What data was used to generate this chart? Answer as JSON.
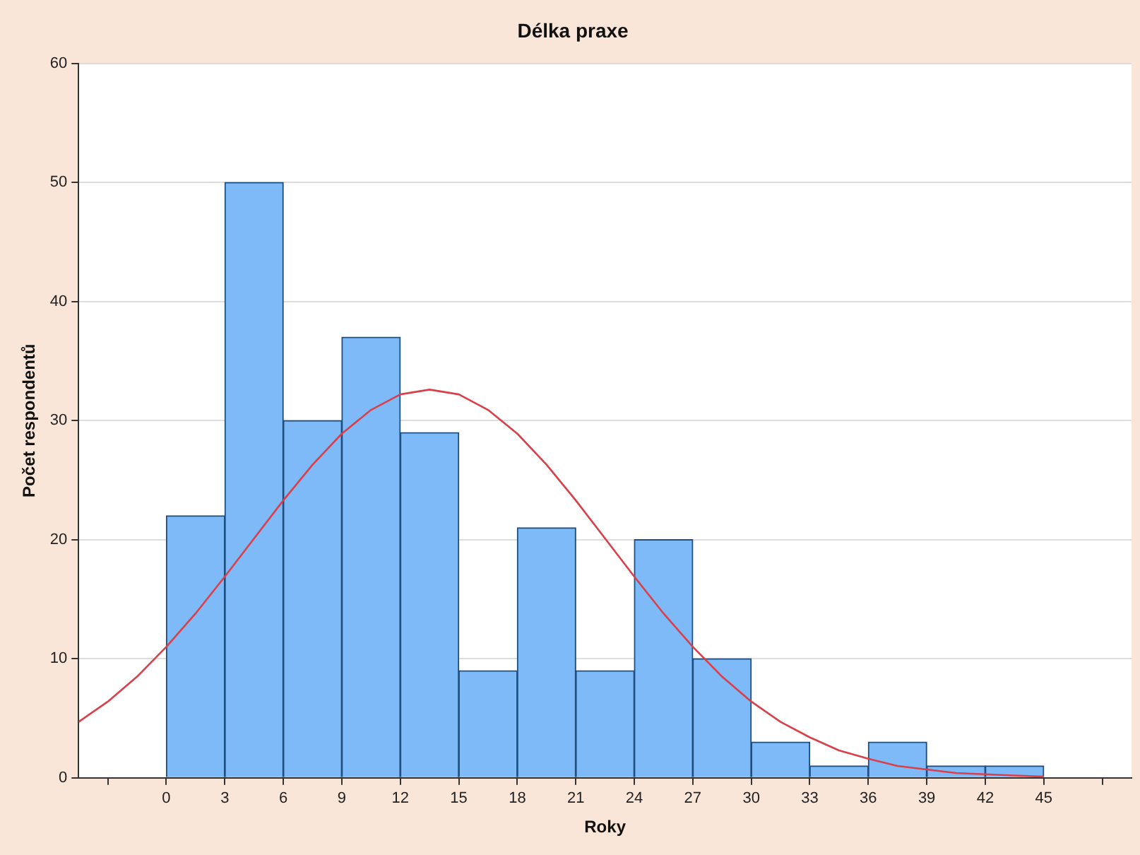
{
  "chart_data": {
    "type": "histogram",
    "title": "Délka praxe",
    "xlabel": "Roky",
    "ylabel": "Počet respondentů",
    "bins": [
      0,
      3,
      6,
      9,
      12,
      15,
      18,
      21,
      24,
      27,
      30,
      33,
      36,
      39,
      42,
      45
    ],
    "values": [
      22,
      50,
      30,
      37,
      29,
      9,
      21,
      9,
      20,
      10,
      3,
      1,
      3,
      1,
      1
    ],
    "color": "#7fbaf8",
    "series": [
      {
        "type": "line",
        "color": "#d9404a",
        "x": [
          -4.5,
          -3,
          -1.5,
          0,
          1.5,
          3,
          4.5,
          6,
          7.5,
          9,
          10.5,
          12,
          13.5,
          15,
          16.5,
          18,
          19.5,
          21,
          22.5,
          24,
          25.5,
          27,
          28.5,
          30,
          31.5,
          33,
          34.5,
          36,
          37.5,
          39,
          40.5,
          42,
          43.5,
          45
        ],
        "values": [
          4.7,
          6.4,
          8.5,
          11.0,
          13.8,
          16.9,
          20.1,
          23.3,
          26.3,
          28.9,
          30.9,
          32.2,
          32.6,
          32.2,
          30.9,
          28.9,
          26.3,
          23.3,
          20.1,
          16.9,
          13.8,
          11.0,
          8.5,
          6.4,
          4.7,
          3.4,
          2.3,
          1.6,
          1.0,
          0.7,
          0.4,
          0.3,
          0.2,
          0.1
        ]
      }
    ],
    "xlim": [
      -4.5,
      49.5
    ],
    "xticks": [
      {
        "value": -3,
        "label": null
      },
      0,
      3,
      6,
      9,
      12,
      15,
      18,
      21,
      24,
      27,
      30,
      33,
      36,
      39,
      42,
      45,
      {
        "value": 48,
        "label": null
      }
    ],
    "ylim": [
      0,
      60
    ],
    "yticks": [
      0,
      10,
      20,
      30,
      40,
      50,
      60
    ],
    "grid": "y",
    "legend": false,
    "marker": "none"
  }
}
